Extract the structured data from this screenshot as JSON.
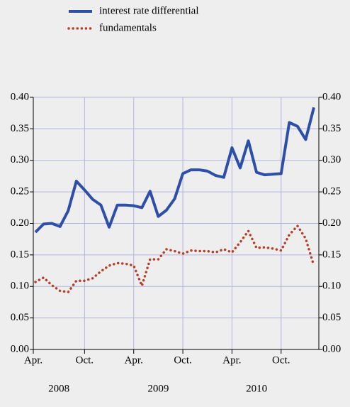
{
  "chart_data": {
    "type": "line",
    "categories": [
      "Apr.",
      null,
      null,
      null,
      null,
      null,
      "Oct.",
      null,
      null,
      null,
      null,
      null,
      "Apr.",
      null,
      null,
      null,
      null,
      null,
      "Oct.",
      null,
      null,
      null,
      null,
      null,
      "Apr.",
      null,
      null,
      null,
      null,
      null,
      "Oct.",
      null,
      null,
      null,
      null
    ],
    "x_groups": [
      "2008",
      "2009",
      "2010"
    ],
    "series": [
      {
        "name": "interest rate differential",
        "color": "#2e4fa8",
        "style": "solid",
        "values": [
          0.186,
          0.199,
          0.2,
          0.195,
          0.22,
          0.267,
          0.253,
          0.238,
          0.229,
          0.194,
          0.229,
          0.229,
          0.228,
          0.225,
          0.251,
          0.211,
          0.221,
          0.239,
          0.279,
          0.285,
          0.285,
          0.283,
          0.276,
          0.273,
          0.32,
          0.288,
          0.331,
          0.281,
          0.277,
          0.278,
          0.279,
          0.36,
          0.354,
          0.333,
          0.384
        ]
      },
      {
        "name": "fundamentals",
        "color": "#b5402a",
        "style": "dotted",
        "values": [
          0.107,
          0.114,
          0.102,
          0.093,
          0.091,
          0.109,
          0.109,
          0.113,
          0.124,
          0.133,
          0.137,
          0.136,
          0.133,
          0.101,
          0.143,
          0.143,
          0.159,
          0.156,
          0.152,
          0.157,
          0.156,
          0.156,
          0.154,
          0.159,
          0.154,
          0.17,
          0.188,
          0.161,
          0.162,
          0.16,
          0.157,
          0.182,
          0.196,
          0.176,
          0.133
        ]
      }
    ],
    "ylim": [
      0,
      0.4
    ],
    "yticks": [
      {
        "value": 0,
        "label": "0.00"
      },
      {
        "value": 0.05,
        "label": "0.05"
      },
      {
        "value": 0.1,
        "label": "0.10"
      },
      {
        "value": 0.15,
        "label": "0.15"
      },
      {
        "value": 0.2,
        "label": "0.20"
      },
      {
        "value": 0.25,
        "label": "0.25"
      },
      {
        "value": 0.3,
        "label": "0.30"
      },
      {
        "value": 0.35,
        "label": "0.35"
      },
      {
        "value": 0.4,
        "label": "0.40"
      }
    ],
    "y2lim": [
      0,
      0.4
    ],
    "y2ticks": [
      {
        "value": 0,
        "label": "0.00"
      },
      {
        "value": 0.05,
        "label": "0.05"
      },
      {
        "value": 0.1,
        "label": "0.10"
      },
      {
        "value": 0.15,
        "label": "0.15"
      },
      {
        "value": 0.2,
        "label": "0.20"
      },
      {
        "value": 0.25,
        "label": "0.25"
      },
      {
        "value": 0.3,
        "label": "0.30"
      },
      {
        "value": 0.35,
        "label": "0.35"
      },
      {
        "value": 0.4,
        "label": "0.40"
      }
    ],
    "grid": true,
    "legend": "top-left"
  }
}
